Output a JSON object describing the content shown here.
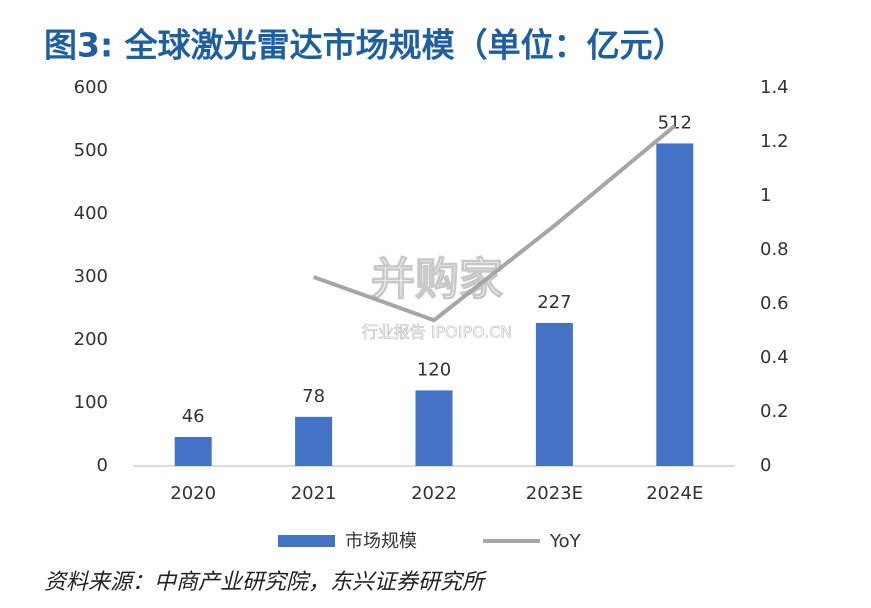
{
  "chart_data": {
    "type": "combo",
    "title": "图3: 全球激光雷达市场规模（单位：亿元）",
    "categories": [
      "2020",
      "2021",
      "2022",
      "2023E",
      "2024E"
    ],
    "series": [
      {
        "name": "市场规模",
        "type": "bar",
        "axis": "y",
        "color": "#4472c4",
        "values": [
          46,
          78,
          120,
          227,
          512
        ]
      },
      {
        "name": "YoY",
        "type": "line",
        "axis": "y2",
        "color": "#a6a6a6",
        "values": [
          null,
          0.7,
          0.54,
          0.89,
          1.26
        ]
      }
    ],
    "ylim": [
      0,
      600
    ],
    "yticks": [
      0,
      100,
      200,
      300,
      400,
      500,
      600
    ],
    "y2lim": [
      0,
      1.4
    ],
    "y2ticks": [
      0,
      0.2,
      0.4,
      0.6,
      0.8,
      1,
      1.2,
      1.4
    ],
    "grid": false,
    "legend": "bottom",
    "source": "资料来源：中商产业研究院，东兴证券研究所",
    "watermark": {
      "logo": "并购家",
      "text": "行业报告 IPOIPO.CN"
    }
  }
}
